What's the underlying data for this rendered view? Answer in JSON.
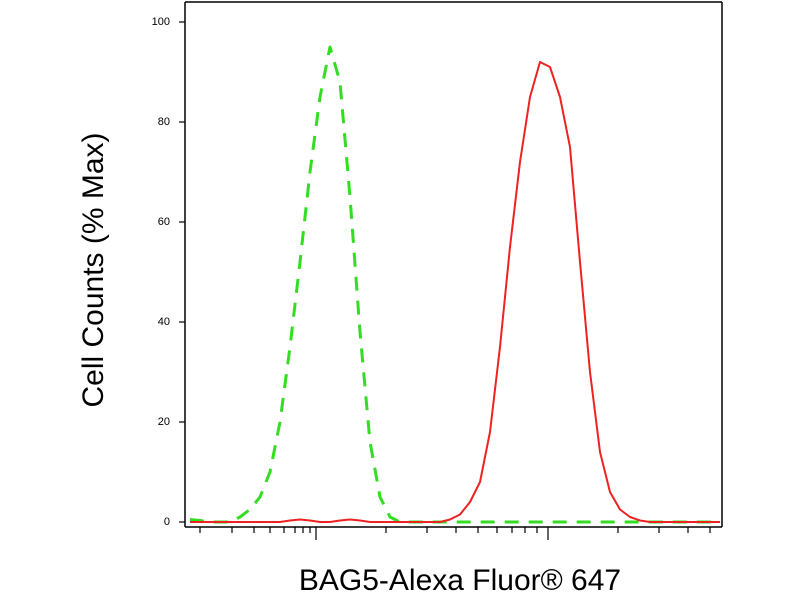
{
  "chart_data": {
    "type": "line",
    "xlabel": "BAG5-Alexa Fluor® 647",
    "ylabel": "Cell Counts (% Max)",
    "categories": [
      null,
      null,
      null,
      null,
      null,
      null,
      null,
      null,
      null,
      null,
      null,
      null,
      null,
      null,
      null,
      null,
      null,
      null,
      null,
      null,
      null,
      null,
      null,
      null,
      null,
      null,
      null,
      null,
      null,
      null,
      null,
      null,
      null,
      null,
      null,
      null,
      null,
      null,
      null,
      null,
      null,
      null,
      null,
      null,
      null,
      null,
      null,
      null,
      null,
      null,
      null,
      null,
      null,
      null
    ],
    "series": [
      {
        "color": "#33dd22",
        "dash": true,
        "values": [
          0.5,
          0.3,
          0,
          0,
          0,
          1,
          2.5,
          5,
          10,
          20,
          35,
          52,
          70,
          85,
          95,
          88,
          65,
          38,
          16,
          5,
          1,
          0,
          0,
          0,
          0,
          0,
          0,
          0,
          0,
          0,
          0,
          0,
          0,
          0,
          0,
          0,
          0,
          0,
          0,
          0,
          0,
          0,
          0,
          0,
          0,
          0,
          0,
          0,
          0,
          0,
          0,
          0,
          0,
          0
        ]
      },
      {
        "color": "#ee2222",
        "dash": false,
        "values": [
          0,
          0,
          0,
          0,
          0,
          0,
          0,
          0,
          0,
          0,
          0.3,
          0.5,
          0.3,
          0,
          0,
          0.3,
          0.5,
          0.3,
          0,
          0,
          0,
          0,
          0,
          0,
          0,
          0,
          0.5,
          1.5,
          4,
          8,
          18,
          35,
          55,
          72,
          85,
          92,
          91,
          85,
          75,
          52,
          30,
          14,
          6,
          2.5,
          1,
          0.3,
          0,
          0,
          0,
          0,
          0,
          0,
          0,
          0
        ]
      }
    ],
    "ylim": [
      -1,
      104
    ],
    "yticks": [
      0,
      20,
      40,
      60,
      80,
      100
    ]
  }
}
